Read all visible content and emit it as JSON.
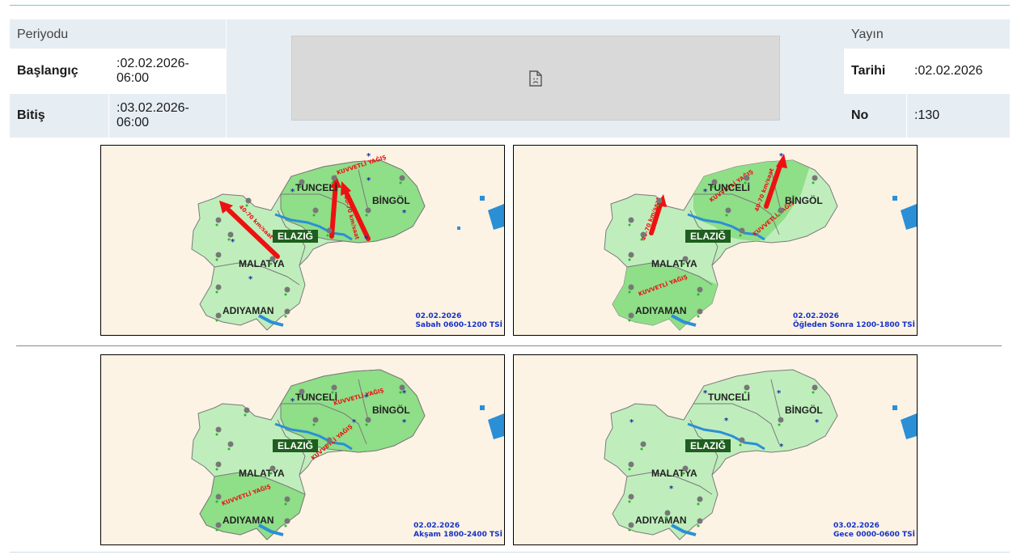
{
  "period": {
    "header": "Periyodu",
    "start_label": "Başlangıç",
    "start_value": ":02.02.2026-\n06:00",
    "end_label": "Bitiş",
    "end_value": ":03.02.2026-\n06:00"
  },
  "publication": {
    "header": "Yayın",
    "date_label": "Tarihi",
    "date_value": ":02.02.2026",
    "no_label": "No",
    "no_value": ":130"
  },
  "provinces": {
    "tunceli": "TUNCELİ",
    "bingol": "BİNGÖL",
    "elazig": "ELAZIĞ",
    "malatya": "MALATYA",
    "adiyaman": "ADIYAMAN"
  },
  "maps": [
    {
      "date": "02.02.2026",
      "period": "Sabah 0600-1200 TSİ",
      "annotations": [
        "KUVVETLİ YAĞIŞ",
        "40-70 km/saat",
        "40-70 km/saat"
      ]
    },
    {
      "date": "02.02.2026",
      "period": "Öğleden Sonra 1200-1800 TSİ",
      "annotations": [
        "KUVVETLİ YAĞIŞ",
        "KUVVETLİ YAĞIŞ",
        "KUVVETLİ YAĞIŞ",
        "40-70 km/saat",
        "40-70 km/saat"
      ]
    },
    {
      "date": "02.02.2026",
      "period": "Akşam 1800-2400 TSİ",
      "annotations": [
        "KUVVETLİ YAĞIŞ",
        "KUVVETLİ YAĞIŞ",
        "KUVVETLİ YAĞIŞ"
      ]
    },
    {
      "date": "03.02.2026",
      "period": "Gece 0000-0600 TSİ",
      "annotations": []
    }
  ],
  "colors": {
    "land": "#bfeebc",
    "warning_area": "#8fde88",
    "sea": "#fdf3e4",
    "water": "#2b8fd6",
    "label_bg": "#1e5e1e",
    "arrow": "#ee1111",
    "caption": "#1432c8"
  },
  "icons": [
    "rain-cloud-icon",
    "snowflake-icon",
    "broken-image-icon"
  ]
}
